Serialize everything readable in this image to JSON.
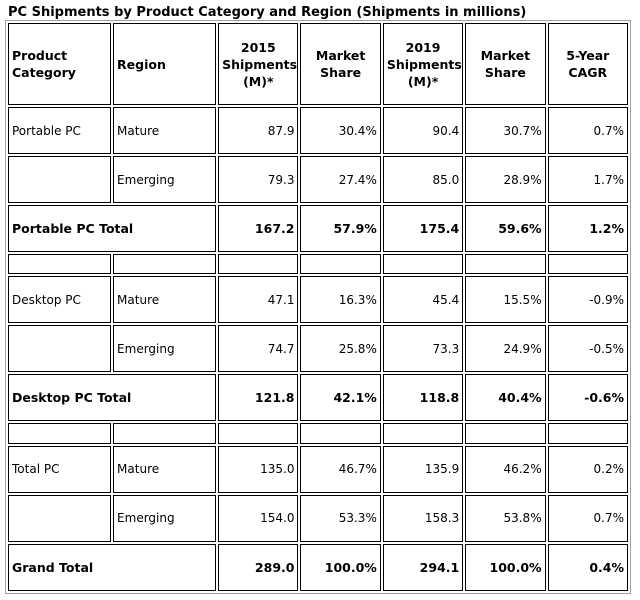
{
  "title": "PC Shipments by Product Category and Region (Shipments in millions)",
  "headers": {
    "category": [
      "Product",
      "Category"
    ],
    "region": "Region",
    "y2015": [
      "2015",
      "Shipments",
      "(M)*"
    ],
    "share2015": [
      "Market",
      "Share"
    ],
    "y2019": [
      "2019",
      "Shipments",
      "(M)*"
    ],
    "share2019": [
      "Market",
      "Share"
    ],
    "cagr": [
      "5-Year",
      "CAGR"
    ]
  },
  "chart_data": {
    "type": "table",
    "title": "PC Shipments by Product Category and Region (Shipments in millions)",
    "columns": [
      "Product Category",
      "Region",
      "2015 Shipments (M)*",
      "Market Share",
      "2019 Shipments (M)*",
      "Market Share",
      "5-Year CAGR"
    ],
    "rows": [
      {
        "kind": "data",
        "cells": [
          "Portable PC",
          "Mature",
          "87.9",
          "30.4%",
          "90.4",
          "30.7%",
          "0.7%"
        ]
      },
      {
        "kind": "data",
        "cells": [
          "",
          "Emerging",
          "79.3",
          "27.4%",
          "85.0",
          "28.9%",
          "1.7%"
        ]
      },
      {
        "kind": "total",
        "cells": [
          "Portable PC Total",
          "167.2",
          "57.9%",
          "175.4",
          "59.6%",
          "1.2%"
        ]
      },
      {
        "kind": "spacer",
        "cells": []
      },
      {
        "kind": "data",
        "cells": [
          "Desktop PC",
          "Mature",
          "47.1",
          "16.3%",
          "45.4",
          "15.5%",
          "-0.9%"
        ]
      },
      {
        "kind": "data",
        "cells": [
          "",
          "Emerging",
          "74.7",
          "25.8%",
          "73.3",
          "24.9%",
          "-0.5%"
        ]
      },
      {
        "kind": "total",
        "cells": [
          "Desktop PC Total",
          "121.8",
          "42.1%",
          "118.8",
          "40.4%",
          "-0.6%"
        ]
      },
      {
        "kind": "spacer",
        "cells": []
      },
      {
        "kind": "data",
        "cells": [
          "Total PC",
          "Mature",
          "135.0",
          "46.7%",
          "135.9",
          "46.2%",
          "0.2%"
        ]
      },
      {
        "kind": "data",
        "cells": [
          "",
          "Emerging",
          "154.0",
          "53.3%",
          "158.3",
          "53.8%",
          "0.7%"
        ]
      },
      {
        "kind": "total",
        "cells": [
          "Grand Total",
          "289.0",
          "100.0%",
          "294.1",
          "100.0%",
          "0.4%"
        ]
      }
    ]
  }
}
